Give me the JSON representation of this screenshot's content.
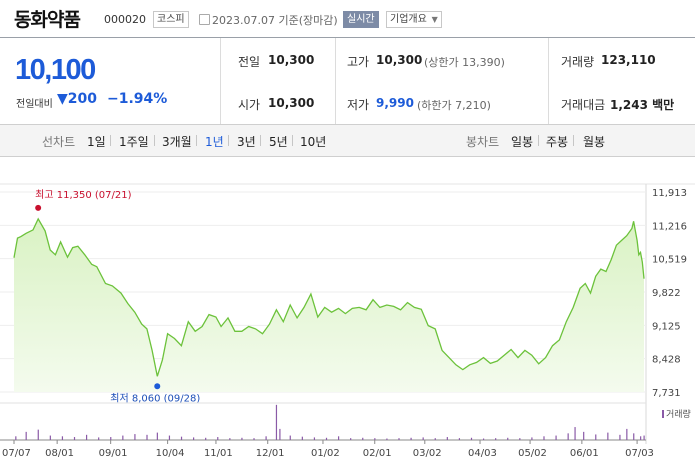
{
  "header": {
    "stock_name": "동화약품",
    "stock_code": "000020",
    "market_tag": "코스피",
    "date_text": "2023.07.07  기준(장마감)",
    "live_tag": "실시간",
    "info_tag": "기업개요"
  },
  "quote": {
    "price": "10,100",
    "change_label": "전일대비",
    "change_value": "▼200",
    "change_pct": "−1.94%",
    "prev_close_label": "전일",
    "prev_close": "10,300",
    "high_label": "고가",
    "high": "10,300",
    "upper_limit": "(상한가 13,390)",
    "volume_label": "거래량",
    "volume": "123,110",
    "open_label": "시가",
    "open": "10,300",
    "low_label": "저가",
    "low": "9,990",
    "lower_limit": "(하한가 7,210)",
    "amount_label": "거래대금",
    "amount": "1,243 백만"
  },
  "tabs": {
    "line_title": "선차트",
    "line_periods": [
      "1일",
      "1주일",
      "3개월",
      "1년",
      "3년",
      "5년",
      "10년"
    ],
    "active_index": 3,
    "candle_title": "봉차트",
    "candle_periods": [
      "일봉",
      "주봉",
      "월봉"
    ]
  },
  "colors": {
    "accent_blue": "#1d5bd8",
    "line_green": "#6cc23b",
    "area_green": "#d9f2c3",
    "high_red": "#c8102e",
    "volume_purple": "#8a5aa7"
  },
  "chart_data": {
    "type": "area",
    "title": "",
    "xlabel": "",
    "ylabel": "",
    "period": "1년",
    "y_ticks": [
      "11,913",
      "11,216",
      "10,519",
      "9,822",
      "9,125",
      "8,428",
      "7,731"
    ],
    "y_tick_values": [
      11913,
      11216,
      10519,
      9822,
      9125,
      8428,
      7731
    ],
    "ylim": [
      7731,
      11913
    ],
    "x_ticks": [
      "07/07",
      "08/01",
      "09/01",
      "10/04",
      "11/01",
      "12/01",
      "01/02",
      "02/01",
      "03/02",
      "04/03",
      "05/02",
      "06/01",
      "07/03"
    ],
    "x_tick_dates": [
      "2022-07-07",
      "2022-08-01",
      "2022-09-01",
      "2022-10-04",
      "2022-11-01",
      "2022-12-01",
      "2023-01-02",
      "2023-02-01",
      "2023-03-02",
      "2023-04-03",
      "2023-05-02",
      "2023-06-01",
      "2023-07-03"
    ],
    "series": [
      {
        "values": [
          10540,
          10950,
          10980,
          11050,
          11120,
          11350,
          11100,
          10700,
          10600,
          10870,
          10550,
          10750,
          10780,
          10600,
          10400,
          10350,
          10000,
          9950,
          9800,
          9580,
          9400,
          9150,
          9050,
          8600,
          8060,
          8400,
          8950,
          8850,
          8700,
          9200,
          9000,
          9100,
          9350,
          9300,
          9100,
          9280,
          9000,
          9000,
          9100,
          9050,
          8950,
          9150,
          9450,
          9200,
          9550,
          9280,
          9500,
          9780,
          9300,
          9500,
          9400,
          9480,
          9370,
          9480,
          9500,
          9450,
          9660,
          9500,
          9550,
          9520,
          9450,
          9600,
          9500,
          9460,
          9120,
          9050,
          8600,
          8450,
          8300,
          8200,
          8300,
          8350,
          8450,
          8330,
          8380,
          8500,
          8620,
          8450,
          8600,
          8500,
          8320,
          8450,
          8700,
          8820,
          9200,
          9500,
          9900,
          10000,
          9800,
          10150,
          10300,
          10250,
          10500,
          10800,
          10900,
          11000,
          11150,
          11300,
          10900,
          10600,
          10650,
          10450,
          10100
        ],
        "x_dates": [
          "2022-07-07",
          "2022-07-09",
          "2022-07-11",
          "2022-07-14",
          "2022-07-18",
          "2022-07-21",
          "2022-07-25",
          "2022-07-28",
          "2022-07-31",
          "2022-08-03",
          "2022-08-07",
          "2022-08-10",
          "2022-08-13",
          "2022-08-17",
          "2022-08-21",
          "2022-08-24",
          "2022-08-29",
          "2022-09-02",
          "2022-09-07",
          "2022-09-11",
          "2022-09-15",
          "2022-09-19",
          "2022-09-22",
          "2022-09-25",
          "2022-09-28",
          "2022-10-01",
          "2022-10-04",
          "2022-10-08",
          "2022-10-12",
          "2022-10-16",
          "2022-10-20",
          "2022-10-24",
          "2022-10-28",
          "2022-11-01",
          "2022-11-04",
          "2022-11-08",
          "2022-11-12",
          "2022-11-16",
          "2022-11-20",
          "2022-11-24",
          "2022-11-28",
          "2022-12-02",
          "2022-12-06",
          "2022-12-10",
          "2022-12-14",
          "2022-12-18",
          "2022-12-22",
          "2022-12-26",
          "2022-12-30",
          "2023-01-03",
          "2023-01-07",
          "2023-01-11",
          "2023-01-15",
          "2023-01-19",
          "2023-01-23",
          "2023-01-27",
          "2023-01-31",
          "2023-02-04",
          "2023-02-08",
          "2023-02-12",
          "2023-02-16",
          "2023-02-20",
          "2023-02-24",
          "2023-02-28",
          "2023-03-04",
          "2023-03-08",
          "2023-03-12",
          "2023-03-16",
          "2023-03-20",
          "2023-03-24",
          "2023-03-28",
          "2023-04-01",
          "2023-04-05",
          "2023-04-09",
          "2023-04-13",
          "2023-04-17",
          "2023-04-21",
          "2023-04-25",
          "2023-04-29",
          "2023-05-03",
          "2023-05-07",
          "2023-05-11",
          "2023-05-15",
          "2023-05-19",
          "2023-05-23",
          "2023-05-27",
          "2023-05-31",
          "2023-06-03",
          "2023-06-06",
          "2023-06-09",
          "2023-06-12",
          "2023-06-15",
          "2023-06-18",
          "2023-06-21",
          "2023-06-24",
          "2023-06-27",
          "2023-06-30",
          "2023-07-01",
          "2023-07-03",
          "2023-07-04",
          "2023-07-05",
          "2023-07-06",
          "2023-07-07"
        ]
      }
    ],
    "annotations": [
      {
        "label": "최고 11,350 (07/21)",
        "date": "2022-07-21",
        "value": 11350
      },
      {
        "label": "최저 8,060 (09/28)",
        "date": "2022-09-28",
        "value": 8060
      }
    ],
    "volume_legend": "거래량",
    "volume": [
      {
        "date": "2022-07-08",
        "value": 0.1
      },
      {
        "date": "2022-07-14",
        "value": 0.22
      },
      {
        "date": "2022-07-21",
        "value": 0.28
      },
      {
        "date": "2022-07-28",
        "value": 0.12
      },
      {
        "date": "2022-08-04",
        "value": 0.1
      },
      {
        "date": "2022-08-11",
        "value": 0.08
      },
      {
        "date": "2022-08-18",
        "value": 0.14
      },
      {
        "date": "2022-08-25",
        "value": 0.07
      },
      {
        "date": "2022-09-01",
        "value": 0.08
      },
      {
        "date": "2022-09-08",
        "value": 0.12
      },
      {
        "date": "2022-09-15",
        "value": 0.16
      },
      {
        "date": "2022-09-22",
        "value": 0.14
      },
      {
        "date": "2022-09-28",
        "value": 0.2
      },
      {
        "date": "2022-10-05",
        "value": 0.12
      },
      {
        "date": "2022-10-12",
        "value": 0.09
      },
      {
        "date": "2022-10-19",
        "value": 0.07
      },
      {
        "date": "2022-10-26",
        "value": 0.06
      },
      {
        "date": "2022-11-02",
        "value": 0.08
      },
      {
        "date": "2022-11-09",
        "value": 0.05
      },
      {
        "date": "2022-11-16",
        "value": 0.06
      },
      {
        "date": "2022-11-23",
        "value": 0.05
      },
      {
        "date": "2022-11-30",
        "value": 0.1
      },
      {
        "date": "2022-12-06",
        "value": 0.95
      },
      {
        "date": "2022-12-08",
        "value": 0.3
      },
      {
        "date": "2022-12-14",
        "value": 0.12
      },
      {
        "date": "2022-12-21",
        "value": 0.09
      },
      {
        "date": "2022-12-28",
        "value": 0.07
      },
      {
        "date": "2023-01-04",
        "value": 0.06
      },
      {
        "date": "2023-01-11",
        "value": 0.1
      },
      {
        "date": "2023-01-18",
        "value": 0.05
      },
      {
        "date": "2023-01-25",
        "value": 0.06
      },
      {
        "date": "2023-02-01",
        "value": 0.05
      },
      {
        "date": "2023-02-08",
        "value": 0.04
      },
      {
        "date": "2023-02-15",
        "value": 0.05
      },
      {
        "date": "2023-02-22",
        "value": 0.06
      },
      {
        "date": "2023-03-01",
        "value": 0.07
      },
      {
        "date": "2023-03-08",
        "value": 0.05
      },
      {
        "date": "2023-03-15",
        "value": 0.08
      },
      {
        "date": "2023-03-22",
        "value": 0.05
      },
      {
        "date": "2023-03-29",
        "value": 0.06
      },
      {
        "date": "2023-04-05",
        "value": 0.04
      },
      {
        "date": "2023-04-12",
        "value": 0.05
      },
      {
        "date": "2023-04-19",
        "value": 0.06
      },
      {
        "date": "2023-04-26",
        "value": 0.05
      },
      {
        "date": "2023-05-03",
        "value": 0.07
      },
      {
        "date": "2023-05-10",
        "value": 0.1
      },
      {
        "date": "2023-05-17",
        "value": 0.12
      },
      {
        "date": "2023-05-24",
        "value": 0.18
      },
      {
        "date": "2023-05-28",
        "value": 0.35
      },
      {
        "date": "2023-06-02",
        "value": 0.22
      },
      {
        "date": "2023-06-09",
        "value": 0.15
      },
      {
        "date": "2023-06-16",
        "value": 0.2
      },
      {
        "date": "2023-06-23",
        "value": 0.14
      },
      {
        "date": "2023-06-27",
        "value": 0.3
      },
      {
        "date": "2023-07-01",
        "value": 0.18
      },
      {
        "date": "2023-07-05",
        "value": 0.1
      },
      {
        "date": "2023-07-07",
        "value": 0.12
      }
    ]
  }
}
